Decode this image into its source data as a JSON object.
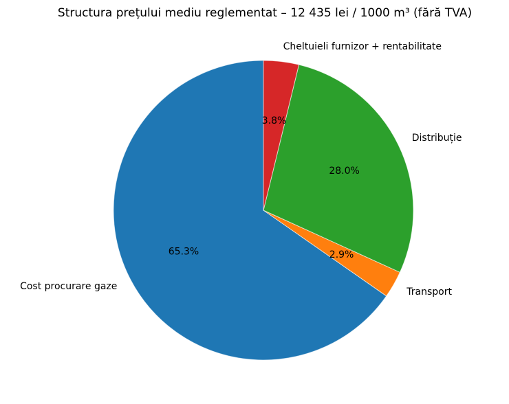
{
  "title": "Structura prețului mediu reglementat – 12 435 lei / 1000 m³ (fără TVA)",
  "chart_data": {
    "type": "pie",
    "title": "Structura prețului mediu reglementat – 12 435 lei / 1000 m³ (fără TVA)",
    "slices": [
      {
        "label": "Cost procurare gaze",
        "value": 65.3,
        "pct_label": "65.3%",
        "color": "#1f77b4"
      },
      {
        "label": "Transport",
        "value": 2.9,
        "pct_label": "2.9%",
        "color": "#ff7f0e"
      },
      {
        "label": "Distribuție",
        "value": 28.0,
        "pct_label": "28.0%",
        "color": "#2ca02c"
      },
      {
        "label": "Cheltuieli furnizor + rentabilitate",
        "value": 3.8,
        "pct_label": "3.8%",
        "color": "#d62728"
      }
    ],
    "start_angle": 90,
    "counterclockwise": true,
    "label_distance": 1.1,
    "pct_distance": 0.6,
    "text_color": "#000000",
    "background": "#ffffff",
    "legend": "none",
    "grid": false
  }
}
